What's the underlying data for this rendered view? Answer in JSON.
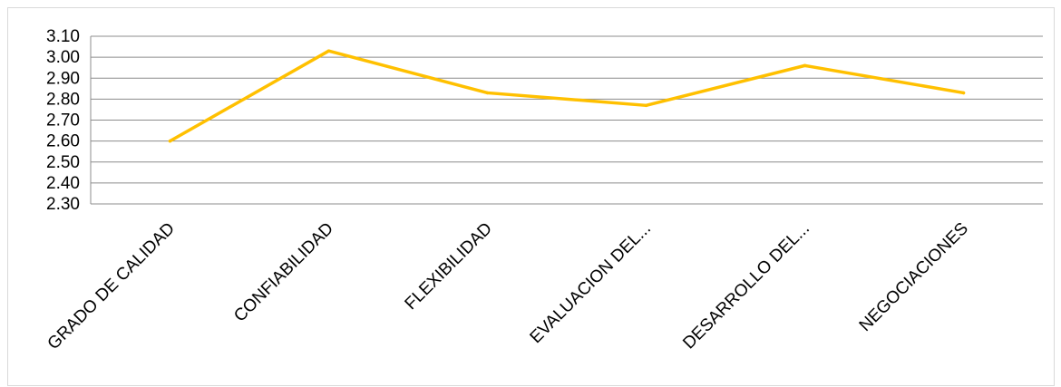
{
  "chart_data": {
    "type": "line",
    "title": "",
    "xlabel": "",
    "ylabel": "",
    "categories": [
      "GRADO DE CALIDAD",
      "CONFIABILIDAD",
      "FLEXIBILIDAD",
      "EVALUACION DEL...",
      "DESARROLLO DEL...",
      "NEGOCIACIONES"
    ],
    "series": [
      {
        "values": [
          2.6,
          3.03,
          2.83,
          2.77,
          2.96,
          2.83
        ],
        "color": "#FFC000"
      }
    ],
    "ylim": [
      2.3,
      3.1
    ],
    "yticks": [
      "3.10",
      "3.00",
      "2.90",
      "2.80",
      "2.70",
      "2.60",
      "2.50",
      "2.40",
      "2.30"
    ],
    "grid": true,
    "legend": "none"
  }
}
